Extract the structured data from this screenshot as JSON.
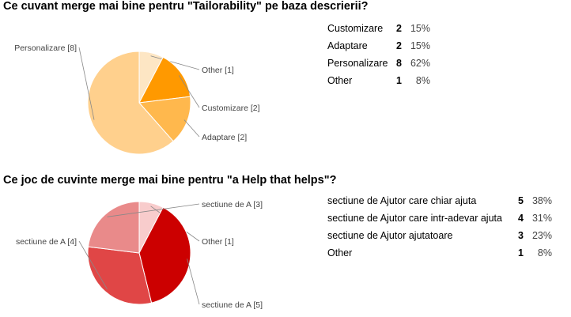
{
  "questions": [
    {
      "title": "Ce cuvant merge mai bine pentru \"Tailorability\" pe baza descrierii?",
      "rows": [
        {
          "label": "Customizare",
          "count": "2",
          "percent": "15%"
        },
        {
          "label": "Adaptare",
          "count": "2",
          "percent": "15%"
        },
        {
          "label": "Personalizare",
          "count": "8",
          "percent": "62%"
        },
        {
          "label": "Other",
          "count": "1",
          "percent": "8%"
        }
      ]
    },
    {
      "title": "Ce joc de cuvinte merge mai bine pentru \"a Help that helps\"?",
      "rows": [
        {
          "label": "sectiune de Ajutor care chiar ajuta",
          "count": "5",
          "percent": "38%"
        },
        {
          "label": "sectiune de Ajutor care intr-adevar ajuta",
          "count": "4",
          "percent": "31%"
        },
        {
          "label": "sectiune de Ajutor ajutatoare",
          "count": "3",
          "percent": "23%"
        },
        {
          "label": "Other",
          "count": "1",
          "percent": "8%"
        }
      ]
    }
  ],
  "chart_data": [
    {
      "type": "pie",
      "title": "Ce cuvant merge mai bine pentru \"Tailorability\" pe baza descrierii?",
      "slices": [
        {
          "label": "Other [1]",
          "value": 1,
          "color": "#fde6c4"
        },
        {
          "label": "Customizare [2]",
          "value": 2,
          "color": "#ff9900"
        },
        {
          "label": "Adaptare [2]",
          "value": 2,
          "color": "#ffb84d"
        },
        {
          "label": "Personalizare [8]",
          "value": 8,
          "color": "#ffd08d"
        }
      ]
    },
    {
      "type": "pie",
      "title": "Ce joc de cuvinte merge mai bine pentru \"a Help that helps\"?",
      "slices": [
        {
          "label": "Other [1]",
          "value": 1,
          "color": "#f8cccc"
        },
        {
          "label": "sectiune de A [5]",
          "value": 5,
          "color": "#cc0000"
        },
        {
          "label": "sectiune de A [4]",
          "value": 4,
          "color": "#e04646"
        },
        {
          "label": "sectiune de A [3]",
          "value": 3,
          "color": "#e98a8a"
        }
      ]
    }
  ]
}
